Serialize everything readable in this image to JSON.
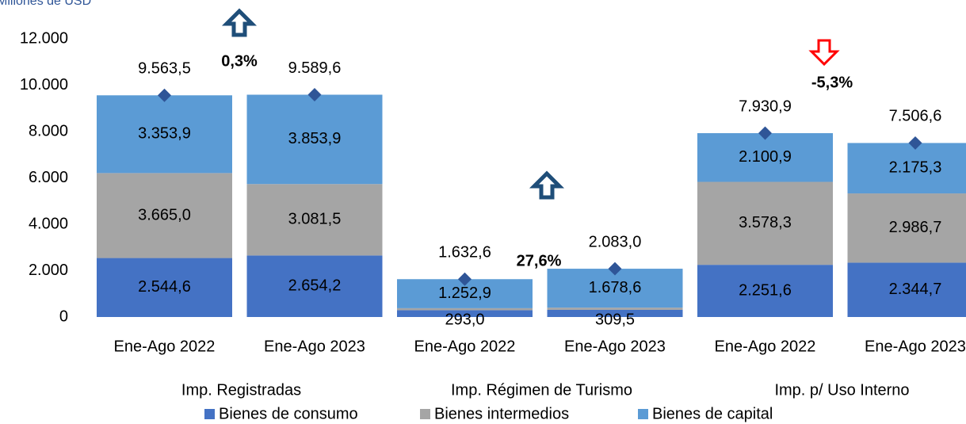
{
  "chart_data": {
    "type": "stacked_bar",
    "y_axis_label": "Millones de USD",
    "categories": [
      "Ene-Ago 2022",
      "Ene-Ago 2023",
      "Ene-Ago 2022",
      "Ene-Ago 2023",
      "Ene-Ago 2022",
      "Ene-Ago 2023"
    ],
    "groups": [
      "Imp. Registradas",
      "Imp. Régimen de Turismo",
      "Imp. p/ Uso Interno"
    ],
    "series": [
      {
        "name": "Bienes de consumo",
        "color": "#4472c4",
        "values": [
          2544.6,
          2654.2,
          293.0,
          309.5,
          2251.6,
          2344.7
        ],
        "value_labels": [
          "2.544,6",
          "2.654,2",
          "293,0",
          "309,5",
          "2.251,6",
          "2.344,7"
        ]
      },
      {
        "name": "Bienes intermedios",
        "color": "#a5a5a5",
        "values": [
          3665.0,
          3081.5,
          86.7,
          94.9,
          3578.3,
          2986.7
        ],
        "value_labels": [
          "3.665,0",
          "3.081,5",
          null,
          null,
          "3.578,3",
          "2.986,7"
        ]
      },
      {
        "name": "Bienes de capital",
        "color": "#5b9bd5",
        "values": [
          3353.9,
          3853.9,
          1252.9,
          1678.6,
          2100.9,
          2175.3
        ],
        "value_labels": [
          "3.353,9",
          "3.853,9",
          "1.252,9",
          "1.678,6",
          "2.100,9",
          "2.175,3"
        ]
      }
    ],
    "totals": {
      "color": "#2f5597",
      "values": [
        9563.5,
        9589.6,
        1632.6,
        2083.0,
        7930.9,
        7506.6
      ],
      "value_labels": [
        "9.563,5",
        "9.589,6",
        "1.632,6",
        "2.083,0",
        "7.930,9",
        "7.506,6"
      ]
    },
    "annotations": [
      {
        "text": "0,3%",
        "direction": "up",
        "color": "#1f4e79"
      },
      {
        "text": "27,6%",
        "direction": "up",
        "color": "#1f4e79"
      },
      {
        "text": "-5,3%",
        "direction": "down",
        "color": "#ff0000"
      }
    ],
    "ylim": [
      0,
      12000
    ],
    "yticks": [
      0,
      {
        "value": 2000,
        "label": "2.000"
      },
      {
        "value": 4000,
        "label": "4.000"
      },
      {
        "value": 6000,
        "label": "6.000"
      },
      {
        "value": 8000,
        "label": "8.000"
      },
      {
        "value": 10000,
        "label": "10.000"
      },
      {
        "value": 12000,
        "label": "12.000"
      }
    ],
    "legend": "bottom"
  }
}
